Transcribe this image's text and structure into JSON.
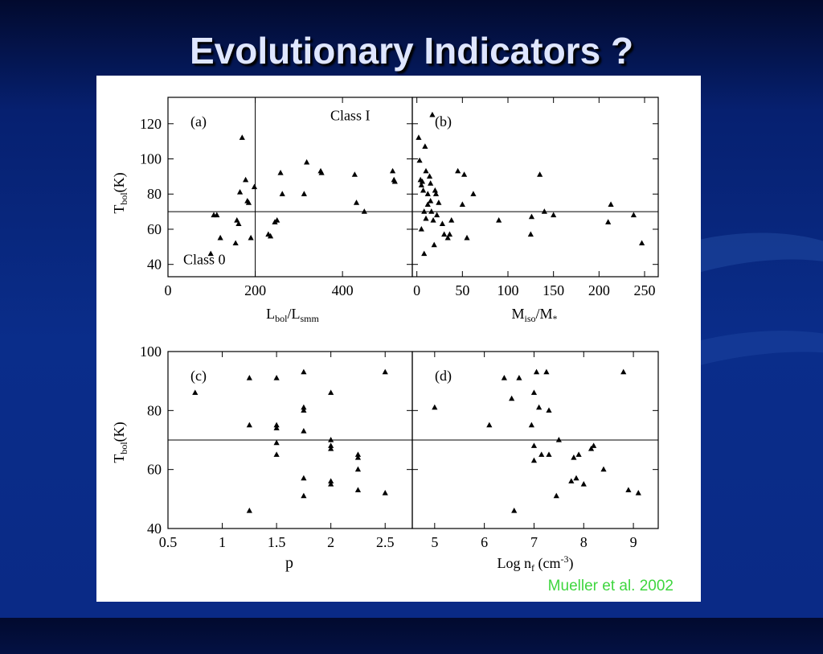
{
  "slide": {
    "title": "Evolutionary Indicators ?",
    "citation": "Mueller et al. 2002"
  },
  "chart_data": [
    {
      "id": "a",
      "type": "scatter",
      "marker": "triangle",
      "panel_label": "(a)",
      "xlabel": "L_bol/L_smm",
      "ylabel": "T_bol(K)",
      "xlim": [
        0,
        560
      ],
      "ylim": [
        33,
        135
      ],
      "xticks": [
        0,
        200,
        400
      ],
      "yticks": [
        40,
        60,
        80,
        100,
        120
      ],
      "hline": 70,
      "vline": 200,
      "annotations": [
        {
          "text": "Class I",
          "x": 372,
          "y": 122
        },
        {
          "text": "Class 0",
          "x": 35,
          "y": 40
        }
      ],
      "points": [
        [
          98,
          46
        ],
        [
          105,
          68
        ],
        [
          112,
          68
        ],
        [
          120,
          55
        ],
        [
          155,
          52
        ],
        [
          158,
          65
        ],
        [
          162,
          63
        ],
        [
          165,
          81
        ],
        [
          170,
          112
        ],
        [
          178,
          88
        ],
        [
          182,
          76
        ],
        [
          185,
          75
        ],
        [
          190,
          55
        ],
        [
          198,
          84
        ],
        [
          230,
          57
        ],
        [
          235,
          56
        ],
        [
          245,
          64
        ],
        [
          250,
          65
        ],
        [
          258,
          92
        ],
        [
          262,
          80
        ],
        [
          312,
          80
        ],
        [
          318,
          98
        ],
        [
          350,
          93
        ],
        [
          352,
          92
        ],
        [
          428,
          91
        ],
        [
          432,
          75
        ],
        [
          450,
          70
        ],
        [
          515,
          93
        ],
        [
          518,
          88
        ],
        [
          520,
          87
        ]
      ]
    },
    {
      "id": "b",
      "type": "scatter",
      "marker": "triangle",
      "panel_label": "(b)",
      "xlabel": "M_iso/M_*",
      "ylabel": "",
      "xlim": [
        -5,
        265
      ],
      "ylim": [
        33,
        135
      ],
      "xticks": [
        0,
        50,
        100,
        150,
        200,
        250
      ],
      "yticks": [
        40,
        60,
        80,
        100,
        120
      ],
      "hline": 70,
      "points": [
        [
          2,
          112
        ],
        [
          3,
          99
        ],
        [
          4,
          88
        ],
        [
          5,
          85
        ],
        [
          5,
          60
        ],
        [
          6,
          87
        ],
        [
          7,
          82
        ],
        [
          8,
          70
        ],
        [
          8,
          46
        ],
        [
          9,
          107
        ],
        [
          10,
          93
        ],
        [
          10,
          66
        ],
        [
          12,
          80
        ],
        [
          12,
          74
        ],
        [
          14,
          90
        ],
        [
          15,
          86
        ],
        [
          15,
          76
        ],
        [
          16,
          70
        ],
        [
          17,
          125
        ],
        [
          18,
          65
        ],
        [
          19,
          51
        ],
        [
          20,
          82
        ],
        [
          21,
          80
        ],
        [
          22,
          68
        ],
        [
          24,
          75
        ],
        [
          28,
          63
        ],
        [
          30,
          57
        ],
        [
          34,
          55
        ],
        [
          36,
          57
        ],
        [
          38,
          65
        ],
        [
          45,
          93
        ],
        [
          50,
          74
        ],
        [
          52,
          91
        ],
        [
          55,
          55
        ],
        [
          62,
          80
        ],
        [
          90,
          65
        ],
        [
          125,
          57
        ],
        [
          126,
          67
        ],
        [
          135,
          91
        ],
        [
          140,
          70
        ],
        [
          150,
          68
        ],
        [
          210,
          64
        ],
        [
          213,
          74
        ],
        [
          238,
          68
        ],
        [
          247,
          52
        ]
      ]
    },
    {
      "id": "c",
      "type": "scatter",
      "marker": "triangle",
      "panel_label": "(c)",
      "xlabel": "p",
      "ylabel": "T_bol(K)",
      "xlim": [
        0.5,
        2.75
      ],
      "ylim": [
        40,
        100
      ],
      "xticks": [
        0.5,
        1,
        1.5,
        2,
        2.5
      ],
      "yticks": [
        40,
        60,
        80,
        100
      ],
      "hline": 70,
      "points": [
        [
          0.75,
          86
        ],
        [
          1.25,
          91
        ],
        [
          1.25,
          75
        ],
        [
          1.25,
          46
        ],
        [
          1.5,
          91
        ],
        [
          1.5,
          75
        ],
        [
          1.5,
          74
        ],
        [
          1.5,
          69
        ],
        [
          1.5,
          65
        ],
        [
          1.75,
          93
        ],
        [
          1.75,
          81
        ],
        [
          1.75,
          80
        ],
        [
          1.75,
          73
        ],
        [
          1.75,
          57
        ],
        [
          1.75,
          51
        ],
        [
          2,
          86
        ],
        [
          2,
          70
        ],
        [
          2,
          68
        ],
        [
          2,
          67
        ],
        [
          2,
          56
        ],
        [
          2,
          55
        ],
        [
          2.25,
          65
        ],
        [
          2.25,
          64
        ],
        [
          2.25,
          60
        ],
        [
          2.25,
          53
        ],
        [
          2.5,
          93
        ],
        [
          2.5,
          52
        ]
      ]
    },
    {
      "id": "d",
      "type": "scatter",
      "marker": "triangle",
      "panel_label": "(d)",
      "xlabel": "Log n_f (cm^-3)",
      "ylabel": "",
      "xlim": [
        4.55,
        9.5
      ],
      "ylim": [
        40,
        100
      ],
      "xticks": [
        5,
        6,
        7,
        8,
        9
      ],
      "yticks": [
        40,
        60,
        80,
        100
      ],
      "hline": 70,
      "points": [
        [
          5,
          81
        ],
        [
          6.1,
          75
        ],
        [
          6.4,
          91
        ],
        [
          6.55,
          84
        ],
        [
          6.6,
          46
        ],
        [
          6.7,
          91
        ],
        [
          6.95,
          75
        ],
        [
          7.0,
          86
        ],
        [
          7.0,
          68
        ],
        [
          7.0,
          63
        ],
        [
          7.05,
          93
        ],
        [
          7.1,
          81
        ],
        [
          7.15,
          65
        ],
        [
          7.25,
          93
        ],
        [
          7.3,
          80
        ],
        [
          7.3,
          65
        ],
        [
          7.45,
          51
        ],
        [
          7.5,
          70
        ],
        [
          7.75,
          56
        ],
        [
          7.8,
          64
        ],
        [
          7.85,
          57
        ],
        [
          7.9,
          65
        ],
        [
          8.0,
          55
        ],
        [
          8.15,
          67
        ],
        [
          8.2,
          68
        ],
        [
          8.4,
          60
        ],
        [
          8.8,
          93
        ],
        [
          8.9,
          53
        ],
        [
          9.1,
          52
        ]
      ]
    }
  ]
}
